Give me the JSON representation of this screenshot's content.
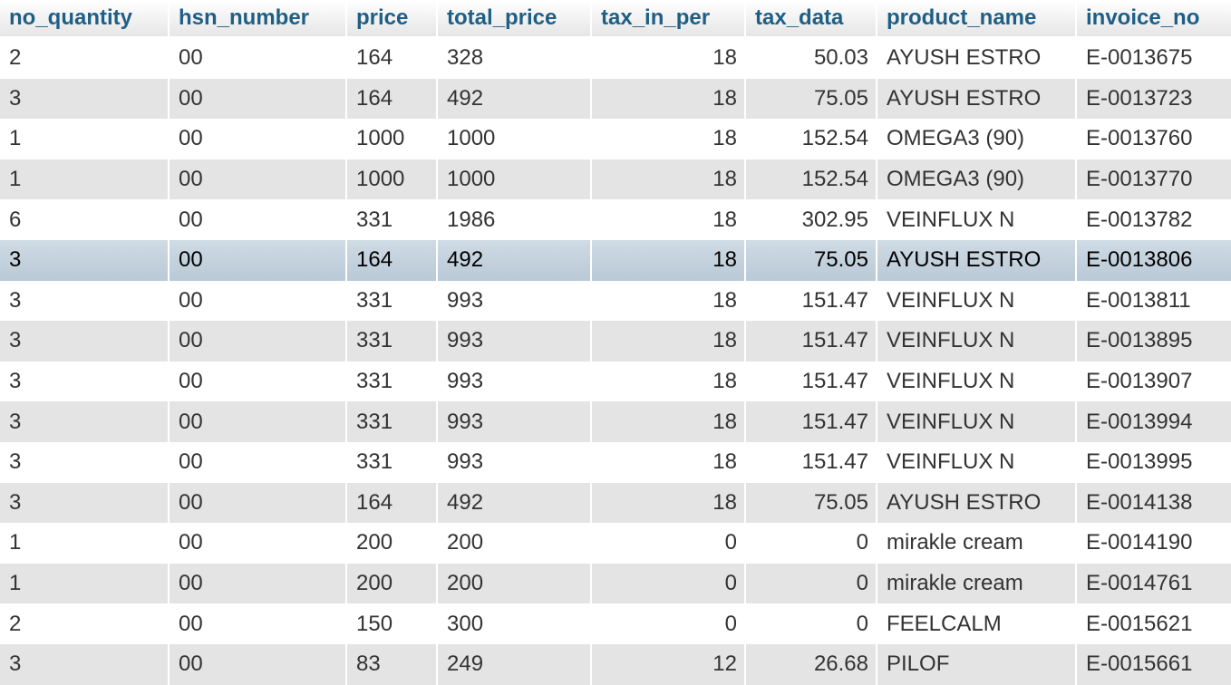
{
  "table": {
    "columns": [
      {
        "key": "no_quantity",
        "label": "no_quantity"
      },
      {
        "key": "hsn_number",
        "label": "hsn_number"
      },
      {
        "key": "price",
        "label": "price"
      },
      {
        "key": "total_price",
        "label": "total_price"
      },
      {
        "key": "tax_in_per",
        "label": "tax_in_per"
      },
      {
        "key": "tax_data",
        "label": "tax_data"
      },
      {
        "key": "product_name",
        "label": "product_name"
      },
      {
        "key": "invoice_no",
        "label": "invoice_no"
      }
    ],
    "rows": [
      {
        "no_quantity": "2",
        "hsn_number": "00",
        "price": "164",
        "total_price": "328",
        "tax_in_per": "18",
        "tax_data": "50.03",
        "product_name": "AYUSH ESTRO",
        "invoice_no": "E-0013675"
      },
      {
        "no_quantity": "3",
        "hsn_number": "00",
        "price": "164",
        "total_price": "492",
        "tax_in_per": "18",
        "tax_data": "75.05",
        "product_name": "AYUSH ESTRO",
        "invoice_no": "E-0013723"
      },
      {
        "no_quantity": "1",
        "hsn_number": "00",
        "price": "1000",
        "total_price": "1000",
        "tax_in_per": "18",
        "tax_data": "152.54",
        "product_name": "OMEGA3 (90)",
        "invoice_no": "E-0013760"
      },
      {
        "no_quantity": "1",
        "hsn_number": "00",
        "price": "1000",
        "total_price": "1000",
        "tax_in_per": "18",
        "tax_data": "152.54",
        "product_name": "OMEGA3 (90)",
        "invoice_no": "E-0013770"
      },
      {
        "no_quantity": "6",
        "hsn_number": "00",
        "price": "331",
        "total_price": "1986",
        "tax_in_per": "18",
        "tax_data": "302.95",
        "product_name": "VEINFLUX N",
        "invoice_no": "E-0013782"
      },
      {
        "no_quantity": "3",
        "hsn_number": "00",
        "price": "164",
        "total_price": "492",
        "tax_in_per": "18",
        "tax_data": "75.05",
        "product_name": "AYUSH ESTRO",
        "invoice_no": "E-0013806"
      },
      {
        "no_quantity": "3",
        "hsn_number": "00",
        "price": "331",
        "total_price": "993",
        "tax_in_per": "18",
        "tax_data": "151.47",
        "product_name": "VEINFLUX N",
        "invoice_no": "E-0013811"
      },
      {
        "no_quantity": "3",
        "hsn_number": "00",
        "price": "331",
        "total_price": "993",
        "tax_in_per": "18",
        "tax_data": "151.47",
        "product_name": "VEINFLUX N",
        "invoice_no": "E-0013895"
      },
      {
        "no_quantity": "3",
        "hsn_number": "00",
        "price": "331",
        "total_price": "993",
        "tax_in_per": "18",
        "tax_data": "151.47",
        "product_name": "VEINFLUX N",
        "invoice_no": "E-0013907"
      },
      {
        "no_quantity": "3",
        "hsn_number": "00",
        "price": "331",
        "total_price": "993",
        "tax_in_per": "18",
        "tax_data": "151.47",
        "product_name": "VEINFLUX N",
        "invoice_no": "E-0013994"
      },
      {
        "no_quantity": "3",
        "hsn_number": "00",
        "price": "331",
        "total_price": "993",
        "tax_in_per": "18",
        "tax_data": "151.47",
        "product_name": "VEINFLUX N",
        "invoice_no": "E-0013995"
      },
      {
        "no_quantity": "3",
        "hsn_number": "00",
        "price": "164",
        "total_price": "492",
        "tax_in_per": "18",
        "tax_data": "75.05",
        "product_name": "AYUSH ESTRO",
        "invoice_no": "E-0014138"
      },
      {
        "no_quantity": "1",
        "hsn_number": "00",
        "price": "200",
        "total_price": "200",
        "tax_in_per": "0",
        "tax_data": "0",
        "product_name": "mirakle cream",
        "invoice_no": "E-0014190"
      },
      {
        "no_quantity": "1",
        "hsn_number": "00",
        "price": "200",
        "total_price": "200",
        "tax_in_per": "0",
        "tax_data": "0",
        "product_name": "mirakle cream",
        "invoice_no": "E-0014761"
      },
      {
        "no_quantity": "2",
        "hsn_number": "00",
        "price": "150",
        "total_price": "300",
        "tax_in_per": "0",
        "tax_data": "0",
        "product_name": "FEELCALM",
        "invoice_no": "E-0015621"
      },
      {
        "no_quantity": "3",
        "hsn_number": "00",
        "price": "83",
        "total_price": "249",
        "tax_in_per": "12",
        "tax_data": "26.68",
        "product_name": "PILOF",
        "invoice_no": "E-0015661"
      }
    ],
    "highlighted_row_index": 5
  },
  "colors": {
    "header_text": "#1f5f86",
    "row_alt": "#e4e4e4",
    "row_highlight": "#c3d1dd"
  }
}
